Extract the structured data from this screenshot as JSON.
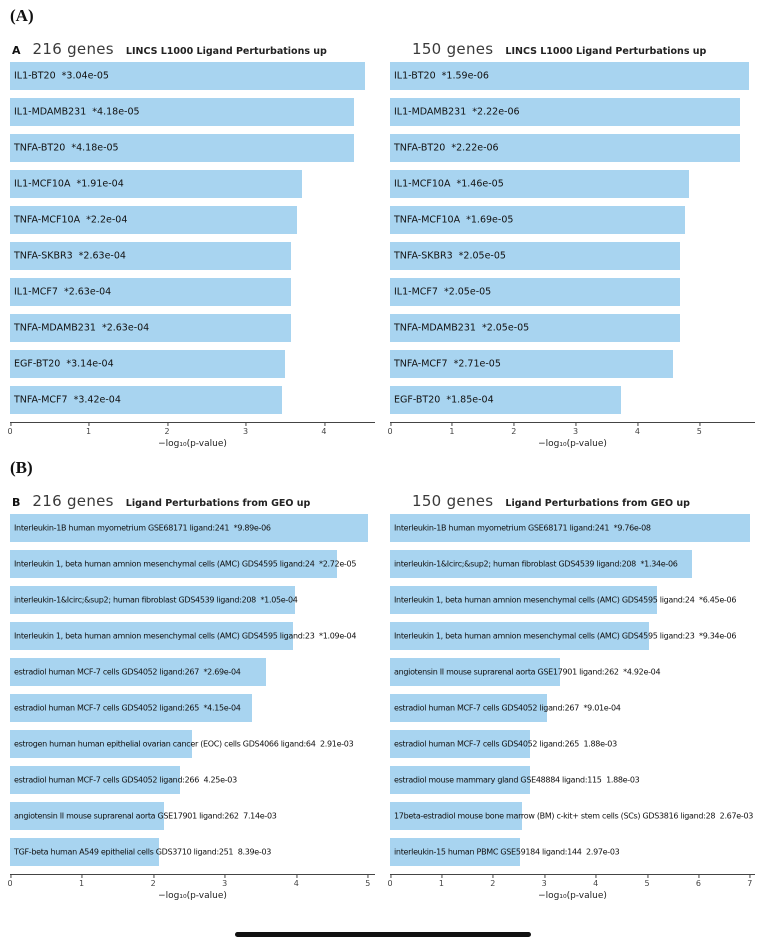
{
  "figure": {
    "panel_a_label": "(A)",
    "panel_b_label": "(B)"
  },
  "colors": {
    "bar_fill": "#a8d4f0",
    "axis": "#444444",
    "text": "#111111"
  },
  "chart_data": [
    {
      "type": "bar",
      "orientation": "horizontal",
      "panel_letter": "A",
      "gene_count": "216 genes",
      "library": "LINCS L1000 Ligand Perturbations up",
      "xlabel": "−log₁₀(p-value)",
      "xlim": [
        0,
        4.65
      ],
      "xticks": [
        0,
        1,
        2,
        3,
        4
      ],
      "bars": [
        {
          "term": "IL1-BT20",
          "pvalue": "*3.04e-05",
          "neglog10_p": 4.52
        },
        {
          "term": "IL1-MDAMB231",
          "pvalue": "*4.18e-05",
          "neglog10_p": 4.38
        },
        {
          "term": "TNFA-BT20",
          "pvalue": "*4.18e-05",
          "neglog10_p": 4.38
        },
        {
          "term": "IL1-MCF10A",
          "pvalue": "*1.91e-04",
          "neglog10_p": 3.72
        },
        {
          "term": "TNFA-MCF10A",
          "pvalue": "*2.2e-04",
          "neglog10_p": 3.66
        },
        {
          "term": "TNFA-SKBR3",
          "pvalue": "*2.63e-04",
          "neglog10_p": 3.58
        },
        {
          "term": "IL1-MCF7",
          "pvalue": "*2.63e-04",
          "neglog10_p": 3.58
        },
        {
          "term": "TNFA-MDAMB231",
          "pvalue": "*2.63e-04",
          "neglog10_p": 3.58
        },
        {
          "term": "EGF-BT20",
          "pvalue": "*3.14e-04",
          "neglog10_p": 3.5
        },
        {
          "term": "TNFA-MCF7",
          "pvalue": "*3.42e-04",
          "neglog10_p": 3.47
        }
      ]
    },
    {
      "type": "bar",
      "orientation": "horizontal",
      "panel_letter": "",
      "gene_count": "150 genes",
      "library": "LINCS L1000 Ligand Perturbations up",
      "xlabel": "−log₁₀(p-value)",
      "xlim": [
        0,
        5.9
      ],
      "xticks": [
        0,
        1,
        2,
        3,
        4,
        5
      ],
      "bars": [
        {
          "term": "IL1-BT20",
          "pvalue": "*1.59e-06",
          "neglog10_p": 5.8
        },
        {
          "term": "IL1-MDAMB231",
          "pvalue": "*2.22e-06",
          "neglog10_p": 5.65
        },
        {
          "term": "TNFA-BT20",
          "pvalue": "*2.22e-06",
          "neglog10_p": 5.65
        },
        {
          "term": "IL1-MCF10A",
          "pvalue": "*1.46e-05",
          "neglog10_p": 4.84
        },
        {
          "term": "TNFA-MCF10A",
          "pvalue": "*1.69e-05",
          "neglog10_p": 4.77
        },
        {
          "term": "TNFA-SKBR3",
          "pvalue": "*2.05e-05",
          "neglog10_p": 4.69
        },
        {
          "term": "IL1-MCF7",
          "pvalue": "*2.05e-05",
          "neglog10_p": 4.69
        },
        {
          "term": "TNFA-MDAMB231",
          "pvalue": "*2.05e-05",
          "neglog10_p": 4.69
        },
        {
          "term": "TNFA-MCF7",
          "pvalue": "*2.71e-05",
          "neglog10_p": 4.57
        },
        {
          "term": "EGF-BT20",
          "pvalue": "*1.85e-04",
          "neglog10_p": 3.73
        }
      ]
    },
    {
      "type": "bar",
      "orientation": "horizontal",
      "panel_letter": "B",
      "gene_count": "216 genes",
      "library": "Ligand Perturbations from GEO up",
      "xlabel": "−log₁₀(p-value)",
      "xlim": [
        0,
        5.1
      ],
      "xticks": [
        0,
        1,
        2,
        3,
        4,
        5
      ],
      "bars": [
        {
          "term": "Interleukin-1B human myometrium GSE68171 ligand:241",
          "pvalue": "*9.89e-06",
          "neglog10_p": 5.0
        },
        {
          "term": "Interleukin 1, beta human amnion mesenchymal cells (AMC) GDS4595 ligand:24",
          "pvalue": "*2.72e-05",
          "neglog10_p": 4.57
        },
        {
          "term": "interleukin-1&Icirc;&sup2; human fibroblast GDS4539 ligand:208",
          "pvalue": "*1.05e-04",
          "neglog10_p": 3.98
        },
        {
          "term": "Interleukin 1, beta human amnion mesenchymal cells (AMC) GDS4595 ligand:23",
          "pvalue": "*1.09e-04",
          "neglog10_p": 3.96
        },
        {
          "term": "estradiol human MCF-7 cells GDS4052 ligand:267",
          "pvalue": "*2.69e-04",
          "neglog10_p": 3.57
        },
        {
          "term": "estradiol human MCF-7 cells GDS4052 ligand:265",
          "pvalue": "*4.15e-04",
          "neglog10_p": 3.38
        },
        {
          "term": "estrogen human human epithelial ovarian cancer (EOC) cells GDS4066 ligand:64",
          "pvalue": "2.91e-03",
          "neglog10_p": 2.54
        },
        {
          "term": "estradiol human MCF-7 cells GDS4052 ligand:266",
          "pvalue": "4.25e-03",
          "neglog10_p": 2.37
        },
        {
          "term": "angiotensin II mouse suprarenal aorta GSE17901 ligand:262",
          "pvalue": "7.14e-03",
          "neglog10_p": 2.15
        },
        {
          "term": "TGF-beta human A549 epithelial cells GDS3710 ligand:251",
          "pvalue": "8.39e-03",
          "neglog10_p": 2.08
        }
      ]
    },
    {
      "type": "bar",
      "orientation": "horizontal",
      "panel_letter": "",
      "gene_count": "150 genes",
      "library": "Ligand Perturbations from GEO up",
      "xlabel": "−log₁₀(p-value)",
      "xlim": [
        0,
        7.1
      ],
      "xticks": [
        0,
        1,
        2,
        3,
        4,
        5,
        6,
        7
      ],
      "bars": [
        {
          "term": "Interleukin-1B human myometrium GSE68171 ligand:241",
          "pvalue": "*9.76e-08",
          "neglog10_p": 7.01
        },
        {
          "term": "interleukin-1&Icirc;&sup2; human fibroblast GDS4539 ligand:208",
          "pvalue": "*1.34e-06",
          "neglog10_p": 5.87
        },
        {
          "term": "Interleukin 1, beta human amnion mesenchymal cells (AMC) GDS4595 ligand:24",
          "pvalue": "*6.45e-06",
          "neglog10_p": 5.19
        },
        {
          "term": "Interleukin 1, beta human amnion mesenchymal cells (AMC) GDS4595 ligand:23",
          "pvalue": "*9.34e-06",
          "neglog10_p": 5.03
        },
        {
          "term": "angiotensin II mouse suprarenal aorta GSE17901 ligand:262",
          "pvalue": "*4.92e-04",
          "neglog10_p": 3.31
        },
        {
          "term": "estradiol human MCF-7 cells GDS4052 ligand:267",
          "pvalue": "*9.01e-04",
          "neglog10_p": 3.05
        },
        {
          "term": "estradiol human MCF-7 cells GDS4052 ligand:265",
          "pvalue": "1.88e-03",
          "neglog10_p": 2.73
        },
        {
          "term": "estradiol mouse mammary gland GSE48884 ligand:115",
          "pvalue": "1.88e-03",
          "neglog10_p": 2.73
        },
        {
          "term": "17beta-estradiol mouse bone marrow (BM) c-kit+ stem cells (SCs) GDS3816 ligand:28",
          "pvalue": "2.67e-03",
          "neglog10_p": 2.57
        },
        {
          "term": "interleukin-15 human PBMC GSE59184 ligand:144",
          "pvalue": "2.97e-03",
          "neglog10_p": 2.53
        }
      ]
    }
  ]
}
